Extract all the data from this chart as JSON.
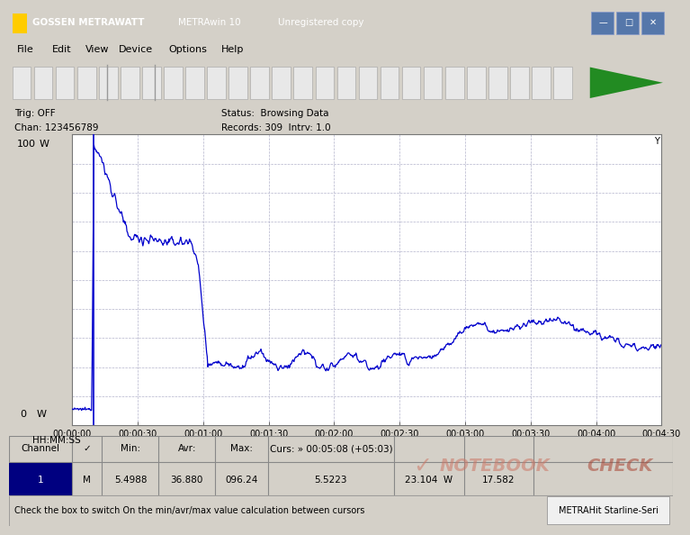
{
  "line_color": "#0000cc",
  "grid_color": "#b0b0cc",
  "plot_bg": "#ffffff",
  "outer_bg": "#f0f0f0",
  "title_bg": "#d4d0c8",
  "footer_left": "Check the box to switch On the min/avr/max value calculation between cursors",
  "footer_right": "METRAHit Starline-Seri",
  "x_ticks": [
    "00:00:00",
    "00:00:30",
    "00:01:00",
    "00:01:30",
    "00:02:00",
    "00:02:30",
    "00:03:00",
    "00:03:30",
    "00:04:00",
    "00:04:30"
  ],
  "y_max": 100,
  "y_min": 0,
  "x_max": 270,
  "title_text": "GOSSEN METRAWATT     METRAwin 10     Unregistered copy",
  "menu_items": [
    "File",
    "Edit",
    "View",
    "Device",
    "Options",
    "Help"
  ],
  "trig_text": "Trig: OFF",
  "chan_text": "Chan: 123456789",
  "status_text": "Status:  Browsing Data",
  "records_text": "Records: 309  Intrv: 1.0",
  "col_headers": [
    "Channel",
    "✓",
    "Min:",
    "Avr:",
    "Max:",
    "Curs: » 00:05:08 (+05:03)"
  ],
  "row_data": [
    "1",
    "M",
    "5.4988",
    "36.880",
    "096.24",
    "5.5223",
    "23.104  W",
    "17.582"
  ],
  "hhmm_label": "HH:MM:SS"
}
